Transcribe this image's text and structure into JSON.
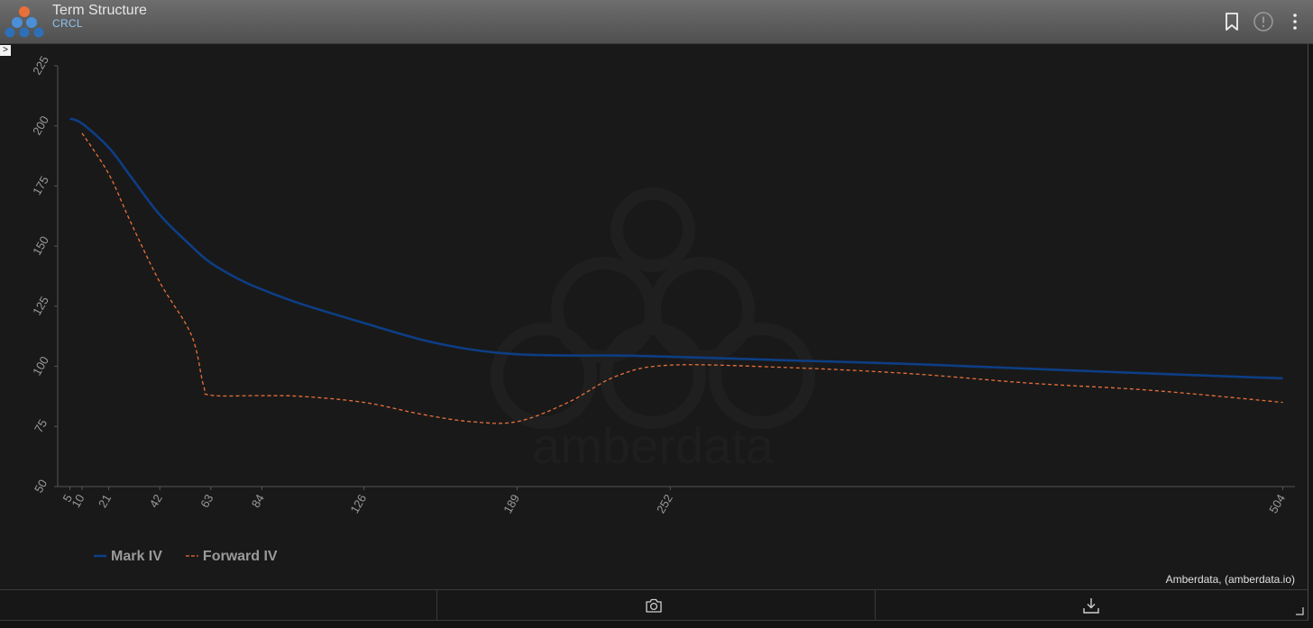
{
  "header": {
    "title": "Term Structure",
    "subtitle": "CRCL",
    "icons": [
      "amberdata-logo-icon",
      "bookmark-icon",
      "info-icon",
      "more-vertical-icon"
    ]
  },
  "sidebar_toggle_label": ">",
  "watermark": "amberdata",
  "attribution": "Amberdata, (amberdata.io)",
  "footer_icons": [
    "camera-icon",
    "download-icon"
  ],
  "colors": {
    "mark_iv": "#0d3e85",
    "forward_iv": "#e8703a",
    "axis": "#555555",
    "tick_text": "#9a9a9a",
    "legend_text": "#9a9a9a"
  },
  "chart_data": {
    "type": "line",
    "title": "",
    "xlabel": "",
    "ylabel": "",
    "xlim": [
      0,
      509
    ],
    "ylim": [
      50,
      225
    ],
    "yticks": [
      50,
      75,
      100,
      125,
      150,
      175,
      200,
      225
    ],
    "xticks": [
      5,
      10,
      21,
      42,
      63,
      84,
      126,
      189,
      252,
      504
    ],
    "grid": false,
    "legend_position": "bottom-left",
    "series": [
      {
        "name": "Mark IV",
        "style": "solid",
        "x": [
          5,
          10,
          21,
          30,
          42,
          55,
          63,
          75,
          84,
          100,
          126,
          150,
          170,
          189,
          210,
          230,
          252,
          300,
          350,
          400,
          450,
          504
        ],
        "y": [
          203,
          201,
          191,
          179,
          163,
          150,
          143,
          136,
          132,
          126,
          118,
          111,
          107,
          105,
          104.5,
          104.5,
          104,
          102.5,
          101,
          99,
          97,
          95
        ]
      },
      {
        "name": "Forward IV",
        "style": "dashed",
        "x": [
          10,
          21,
          30,
          42,
          55,
          60,
          63,
          84,
          100,
          126,
          150,
          170,
          189,
          210,
          230,
          252,
          300,
          350,
          400,
          450,
          504
        ],
        "y": [
          197,
          180,
          160,
          135,
          113,
          92,
          88,
          87.8,
          87.5,
          85,
          80,
          77,
          77,
          85,
          96,
          100.5,
          99.5,
          97,
          93,
          90,
          85
        ]
      }
    ]
  }
}
